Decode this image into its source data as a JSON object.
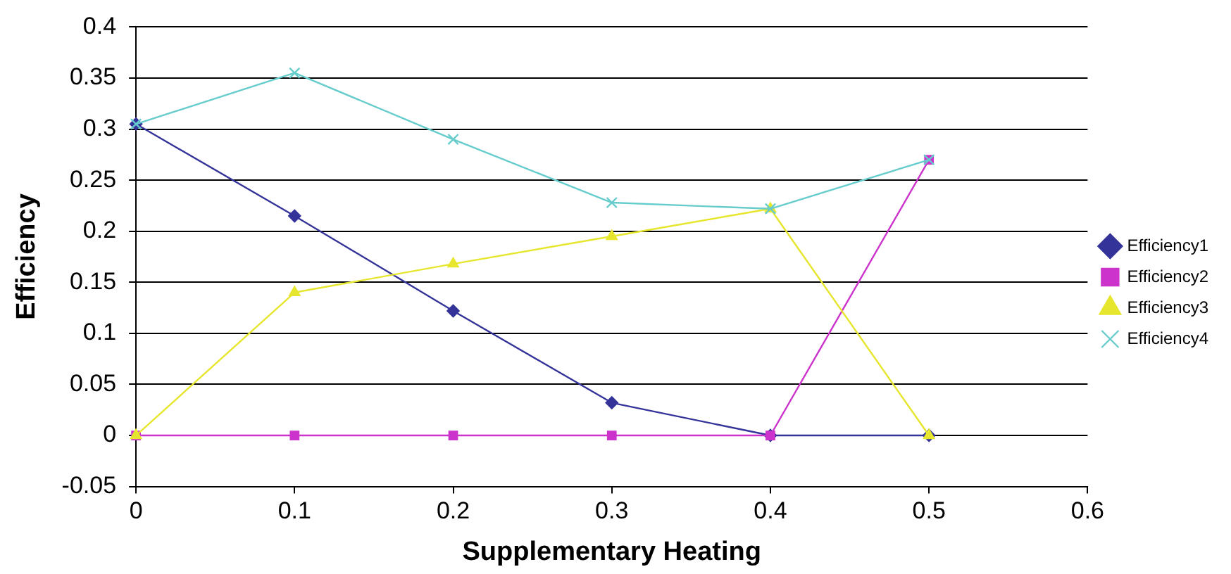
{
  "chart_data": {
    "type": "line",
    "xlabel": "Supplementary Heating",
    "ylabel": "Efficiency",
    "x": [
      0,
      0.1,
      0.2,
      0.3,
      0.4,
      0.5
    ],
    "series": [
      {
        "name": "Efficiency1",
        "color": "#333399",
        "marker": "diamond",
        "values": [
          0.305,
          0.215,
          0.122,
          0.032,
          0,
          0
        ]
      },
      {
        "name": "Efficiency2",
        "color": "#cc33cc",
        "marker": "square",
        "values": [
          0,
          0,
          0,
          0,
          0,
          0.27
        ]
      },
      {
        "name": "Efficiency3",
        "color": "#e6e62e",
        "marker": "triangle",
        "values": [
          0,
          0.14,
          0.168,
          0.195,
          0.222,
          0
        ]
      },
      {
        "name": "Efficiency4",
        "color": "#66cccc",
        "marker": "cross",
        "values": [
          0.305,
          0.355,
          0.29,
          0.228,
          0.222,
          0.27
        ]
      }
    ],
    "xlim": [
      0,
      0.6
    ],
    "xticks": [
      0,
      0.1,
      0.2,
      0.3,
      0.4,
      0.5,
      0.6
    ],
    "ylim": [
      -0.05,
      0.4
    ],
    "yticks": [
      -0.05,
      0,
      0.05,
      0.1,
      0.15,
      0.2,
      0.25,
      0.3,
      0.35,
      0.4
    ],
    "grid": "y",
    "legend": "right"
  }
}
